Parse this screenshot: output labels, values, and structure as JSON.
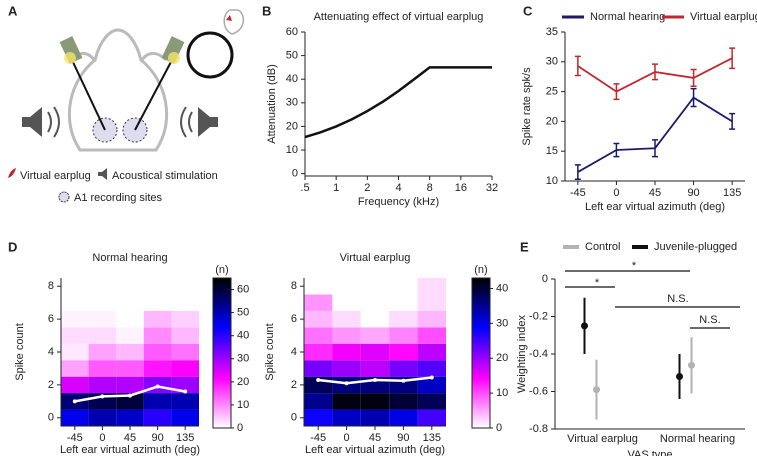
{
  "panel_a": {
    "label": "A",
    "legend": [
      "Virtual earplug",
      "Acoustical stimulation",
      "A1 recording sites"
    ]
  },
  "chart_data": [
    {
      "type": "line",
      "panel": "B",
      "title": "Attenuating effect of virtual earplug",
      "x_label": "Frequency (kHz)",
      "y_label": "Attenuation (dB)",
      "log_x": true,
      "x": [
        0.5,
        0.707,
        1,
        1.414,
        2,
        2.83,
        4,
        5.66,
        8,
        16,
        32
      ],
      "values": [
        15.5,
        17.5,
        20,
        23,
        26.5,
        30.5,
        35,
        40,
        45,
        45,
        45
      ],
      "color": "#111111",
      "xlim": [
        0.5,
        32
      ],
      "xticks": [
        {
          "value": 0.5,
          "label": ".5"
        },
        1,
        2,
        4,
        8,
        16,
        32
      ],
      "ylim": [
        -1,
        60
      ],
      "yticks": [
        0,
        10,
        20,
        30,
        40,
        50,
        60
      ]
    },
    {
      "type": "errorline",
      "panel": "C",
      "x_label": "Left ear virtual azimuth (deg)",
      "y_label": "Spike rate spk/s",
      "x": [
        -45,
        0,
        45,
        90,
        135
      ],
      "xlim": [
        -60,
        150
      ],
      "xticks": [
        -45,
        0,
        45,
        90,
        135
      ],
      "ylim": [
        10,
        35
      ],
      "yticks": [
        10,
        15,
        20,
        25,
        30,
        35
      ],
      "series": [
        {
          "name": "Normal hearing",
          "color": "#1c1a6e",
          "values": [
            11.5,
            15.2,
            15.5,
            24,
            20
          ],
          "errors": [
            1.2,
            1.1,
            1.4,
            1.5,
            1.3
          ]
        },
        {
          "name": "Virtual earplug",
          "color": "#c1272d",
          "values": [
            29.3,
            25,
            28.3,
            27.3,
            30.6
          ],
          "errors": [
            1.6,
            1.3,
            1.3,
            1.4,
            1.7
          ]
        }
      ]
    },
    {
      "type": "heatmap",
      "panel": "D",
      "title": "Normal hearing",
      "x_label": "Left ear virtual azimuth (deg)",
      "y_label": "Spike count",
      "colorbar_label": "(n)",
      "x": [
        -45,
        0,
        45,
        90,
        135
      ],
      "xlim": [
        -67.5,
        157.5
      ],
      "xticks": [
        -45,
        0,
        45,
        90,
        135
      ],
      "y": [
        0,
        1,
        2,
        3,
        4,
        5,
        6
      ],
      "ylim": [
        -0.5,
        8.5
      ],
      "yticks": [
        0,
        2,
        4,
        6,
        8
      ],
      "z": [
        [
          45,
          50,
          48,
          40,
          45
        ],
        [
          55,
          58,
          60,
          50,
          50
        ],
        [
          25,
          28,
          28,
          32,
          30
        ],
        [
          8,
          14,
          14,
          20,
          22
        ],
        [
          2,
          8,
          6,
          14,
          12
        ],
        [
          3,
          3,
          1,
          10,
          6
        ],
        [
          1,
          1,
          0,
          6,
          4
        ]
      ],
      "zlim": [
        0,
        65
      ],
      "zticks": [
        0,
        10,
        20,
        30,
        40,
        50,
        60
      ],
      "mean": [
        1,
        1.3,
        1.35,
        1.9,
        1.6
      ]
    },
    {
      "type": "heatmap",
      "title": "Virtual earplug",
      "x_label": "Left ear virtual azimuth (deg)",
      "y_label": "Spike count",
      "colorbar_label": "(n)",
      "x": [
        -45,
        0,
        45,
        90,
        135
      ],
      "xlim": [
        -67.5,
        157.5
      ],
      "xticks": [
        -45,
        0,
        45,
        90,
        135
      ],
      "y": [
        0,
        1,
        2,
        3,
        4,
        5,
        6,
        7,
        8
      ],
      "ylim": [
        -0.5,
        8.5
      ],
      "yticks": [
        0,
        2,
        4,
        6,
        8
      ],
      "z": [
        [
          28,
          32,
          33,
          30,
          25
        ],
        [
          35,
          42,
          42,
          40,
          38
        ],
        [
          38,
          36,
          36,
          36,
          32
        ],
        [
          22,
          20,
          18,
          22,
          24
        ],
        [
          12,
          15,
          16,
          14,
          18
        ],
        [
          8,
          6,
          5,
          7,
          10
        ],
        [
          4,
          2,
          0,
          2,
          4
        ],
        [
          6,
          0,
          0,
          0,
          2
        ],
        [
          0,
          0,
          0,
          0,
          2
        ]
      ],
      "zlim": [
        0,
        43
      ],
      "zticks": [
        0,
        10,
        20,
        30,
        40
      ],
      "mean": [
        2.3,
        2.1,
        2.3,
        2.25,
        2.45
      ]
    },
    {
      "type": "dot",
      "panel": "E",
      "x_label": "VAS type",
      "y_label": "Weighting index",
      "categories": [
        "Virtual earplug",
        "Normal hearing"
      ],
      "ylim": [
        -0.8,
        0
      ],
      "yticks": [
        0,
        -0.2,
        -0.4,
        -0.6,
        -0.8
      ],
      "series": [
        {
          "name": "Control",
          "color": "#b3b3b3",
          "values": [
            -0.59,
            -0.46
          ],
          "errors": [
            0.16,
            0.15
          ]
        },
        {
          "name": "Juvenile-plugged",
          "color": "#111111",
          "values": [
            -0.25,
            -0.52
          ],
          "errors": [
            0.15,
            0.12
          ]
        }
      ],
      "annotations": [
        "*",
        "*",
        "N.S.",
        "N.S."
      ]
    }
  ]
}
